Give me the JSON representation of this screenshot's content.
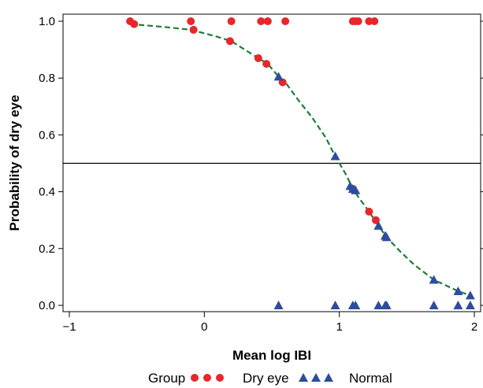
{
  "chart_data": {
    "type": "scatter",
    "title": "",
    "xlabel": "Mean log IBI",
    "ylabel": "Probability of dry eye",
    "xlim": [
      -1,
      2.05
    ],
    "ylim": [
      -0.02,
      1.03
    ],
    "x_ticks": [
      -1,
      0,
      1,
      2
    ],
    "x_tick_labels": [
      "−1",
      "0",
      "1",
      "2"
    ],
    "y_ticks": [
      0.0,
      0.2,
      0.4,
      0.6,
      0.8,
      1.0
    ],
    "y_tick_labels": [
      "0.0",
      "0.2",
      "0.4",
      "0.6",
      "0.8",
      "1.0"
    ],
    "reference_line_y": 0.5,
    "grid": false,
    "legend": {
      "title": "Group",
      "placement": "bottom",
      "entries": [
        "Dry eye",
        "Normal"
      ]
    },
    "colors": {
      "dry_eye": "#e8262b",
      "normal": "#2e4c9e",
      "fit": "#1f7a3a"
    },
    "series": [
      {
        "name": "Dry eye",
        "marker": "circle",
        "x": [
          -0.55,
          -0.1,
          0.2,
          0.42,
          0.47,
          0.6,
          1.1,
          1.12,
          1.14,
          1.22,
          1.26,
          -0.52,
          -0.08,
          0.19,
          0.4,
          0.46,
          0.58,
          1.1,
          1.22,
          1.27
        ],
        "y": [
          1.0,
          1.0,
          1.0,
          1.0,
          1.0,
          1.0,
          1.0,
          1.0,
          1.0,
          1.0,
          1.0,
          0.99,
          0.97,
          0.93,
          0.87,
          0.85,
          0.785,
          0.41,
          0.33,
          0.3
        ]
      },
      {
        "name": "Normal",
        "marker": "triangle",
        "x": [
          0.55,
          0.97,
          1.1,
          1.12,
          1.29,
          1.34,
          1.35,
          1.7,
          1.88,
          1.97,
          0.55,
          0.97,
          1.08,
          1.1,
          1.12,
          1.29,
          1.34,
          1.35,
          1.7,
          1.88,
          1.97
        ],
        "y": [
          0.0,
          0.0,
          0.0,
          0.0,
          0.0,
          0.0,
          0.0,
          0.0,
          0.0,
          0.0,
          0.805,
          0.525,
          0.42,
          0.41,
          0.405,
          0.28,
          0.245,
          0.24,
          0.09,
          0.05,
          0.035
        ]
      },
      {
        "name": "",
        "type": "line",
        "style": "dashed",
        "x": [
          -0.55,
          -0.3,
          -0.1,
          0.1,
          0.2,
          0.3,
          0.4,
          0.47,
          0.55,
          0.6,
          0.7,
          0.8,
          0.9,
          0.97,
          1.05,
          1.1,
          1.15,
          1.22,
          1.29,
          1.35,
          1.45,
          1.55,
          1.7,
          1.88,
          1.97
        ],
        "y": [
          0.99,
          0.98,
          0.97,
          0.945,
          0.93,
          0.9,
          0.87,
          0.85,
          0.805,
          0.785,
          0.72,
          0.66,
          0.59,
          0.525,
          0.46,
          0.41,
          0.375,
          0.33,
          0.28,
          0.24,
          0.19,
          0.145,
          0.09,
          0.05,
          0.035
        ]
      }
    ]
  }
}
